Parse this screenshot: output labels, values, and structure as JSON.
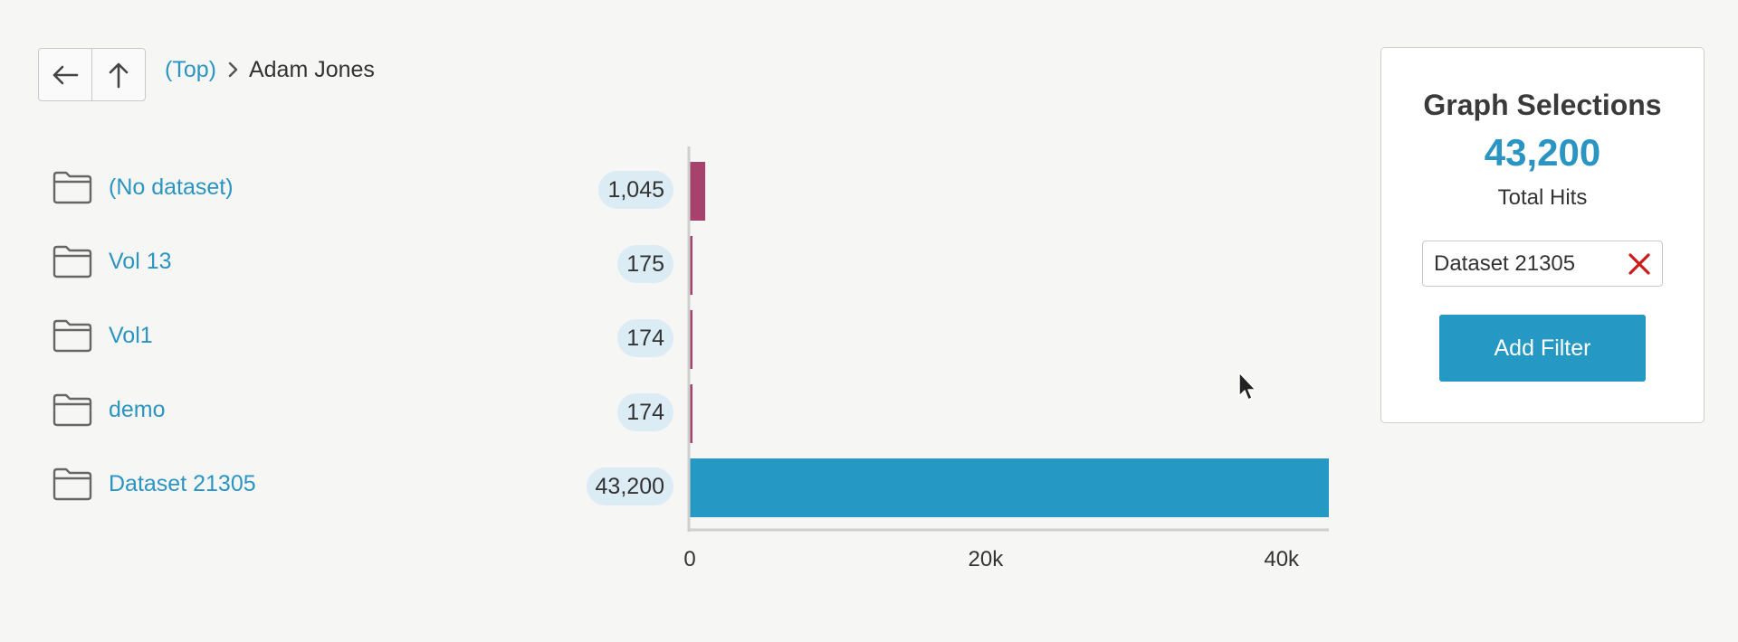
{
  "breadcrumb": {
    "top_label": "(Top)",
    "current_label": "Adam Jones"
  },
  "rows": [
    {
      "name": "(No dataset)",
      "count": "1,045"
    },
    {
      "name": "Vol 13",
      "count": "175"
    },
    {
      "name": "Vol1",
      "count": "174"
    },
    {
      "name": "demo",
      "count": "174"
    },
    {
      "name": "Dataset 21305",
      "count": "43,200"
    }
  ],
  "panel": {
    "title": "Graph Selections",
    "total": "43,200",
    "total_label": "Total Hits",
    "filter_chip": "Dataset 21305",
    "add_filter_label": "Add Filter"
  },
  "colors": {
    "default_bar": "#a6426c",
    "selected_bar": "#2598c4",
    "link": "#2a95c2"
  },
  "chart_data": {
    "type": "bar",
    "orientation": "horizontal",
    "categories": [
      "(No dataset)",
      "Vol 13",
      "Vol1",
      "demo",
      "Dataset 21305"
    ],
    "values": [
      1045,
      175,
      174,
      174,
      43200
    ],
    "selected": "Dataset 21305",
    "xlim": [
      0,
      43200
    ],
    "x_ticks": [
      0,
      20000,
      40000
    ],
    "x_tick_labels": [
      "0",
      "20k",
      "40k"
    ]
  }
}
